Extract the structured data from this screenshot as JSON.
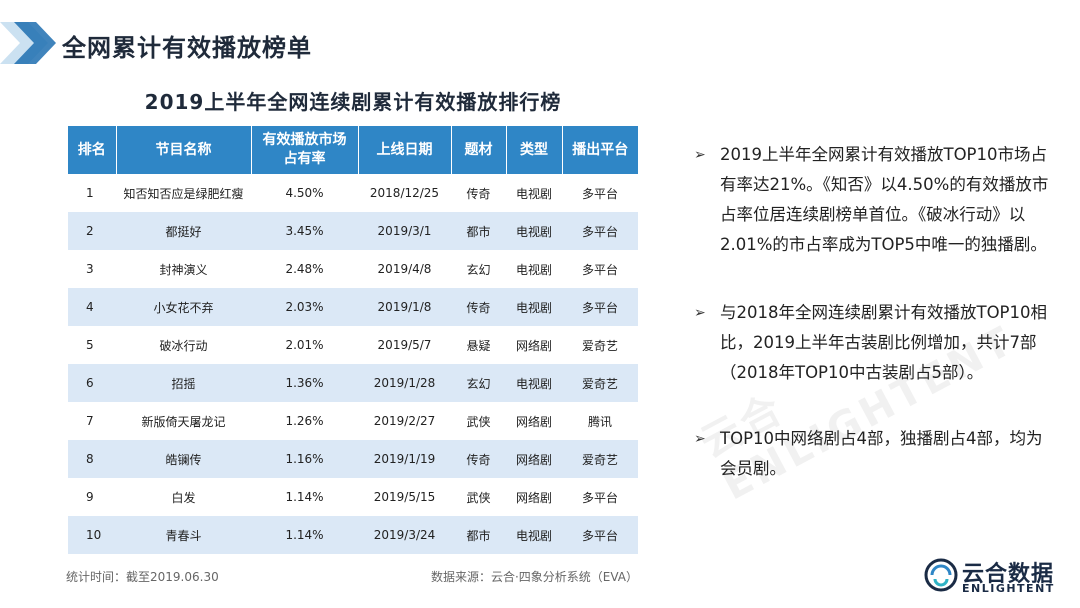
{
  "header": {
    "title": "全网累计有效播放榜单"
  },
  "table": {
    "title": "2019上半年全网连续剧累计有效播放排行榜",
    "columns": [
      "排名",
      "节目名称",
      "有效播放市场\n占有率",
      "上线日期",
      "题材",
      "类型",
      "播出平台"
    ],
    "rows": [
      [
        "1",
        "知否知否应是绿肥红瘦",
        "4.50%",
        "2018/12/25",
        "传奇",
        "电视剧",
        "多平台"
      ],
      [
        "2",
        "都挺好",
        "3.45%",
        "2019/3/1",
        "都市",
        "电视剧",
        "多平台"
      ],
      [
        "3",
        "封神演义",
        "2.48%",
        "2019/4/8",
        "玄幻",
        "电视剧",
        "多平台"
      ],
      [
        "4",
        "小女花不弃",
        "2.03%",
        "2019/1/8",
        "传奇",
        "电视剧",
        "多平台"
      ],
      [
        "5",
        "破冰行动",
        "2.01%",
        "2019/5/7",
        "悬疑",
        "网络剧",
        "爱奇艺"
      ],
      [
        "6",
        "招摇",
        "1.36%",
        "2019/1/28",
        "玄幻",
        "电视剧",
        "爱奇艺"
      ],
      [
        "7",
        "新版倚天屠龙记",
        "1.26%",
        "2019/2/27",
        "武侠",
        "网络剧",
        "腾讯"
      ],
      [
        "8",
        "皓镧传",
        "1.16%",
        "2019/1/19",
        "传奇",
        "网络剧",
        "爱奇艺"
      ],
      [
        "9",
        "白发",
        "1.14%",
        "2019/5/15",
        "武侠",
        "网络剧",
        "多平台"
      ],
      [
        "10",
        "青春斗",
        "1.14%",
        "2019/3/24",
        "都市",
        "电视剧",
        "多平台"
      ]
    ],
    "footnote_left": "统计时间：截至2019.06.30",
    "footnote_right": "数据来源：云合·四象分析系统（EVA）"
  },
  "bullets": [
    "2019上半年全网累计有效播放TOP10市场占有率达21%。《知否》以4.50%的有效播放市占率位居连续剧榜单首位。《破冰行动》以2.01%的市占率成为TOP5中唯一的独播剧。",
    "与2018年全网连续剧累计有效播放TOP10相比，2019上半年古装剧比例增加，共计7部（2018年TOP10中古装剧占5部）。",
    "TOP10中网络剧占4部，独播剧占4部，均为会员剧。"
  ],
  "watermark": "云合 ENLIGHTENT",
  "logo": {
    "cn": "云合数据",
    "en": "ENLIGHTENT"
  },
  "colors": {
    "header_blue": "#2f86c6",
    "row_alt": "#dbe8f6",
    "title_dark": "#1f2a3a"
  },
  "icons": {
    "bullet": "arrow-bullet-icon",
    "header": "chevron-decor-icon",
    "logo": "swirl-logo-icon"
  }
}
